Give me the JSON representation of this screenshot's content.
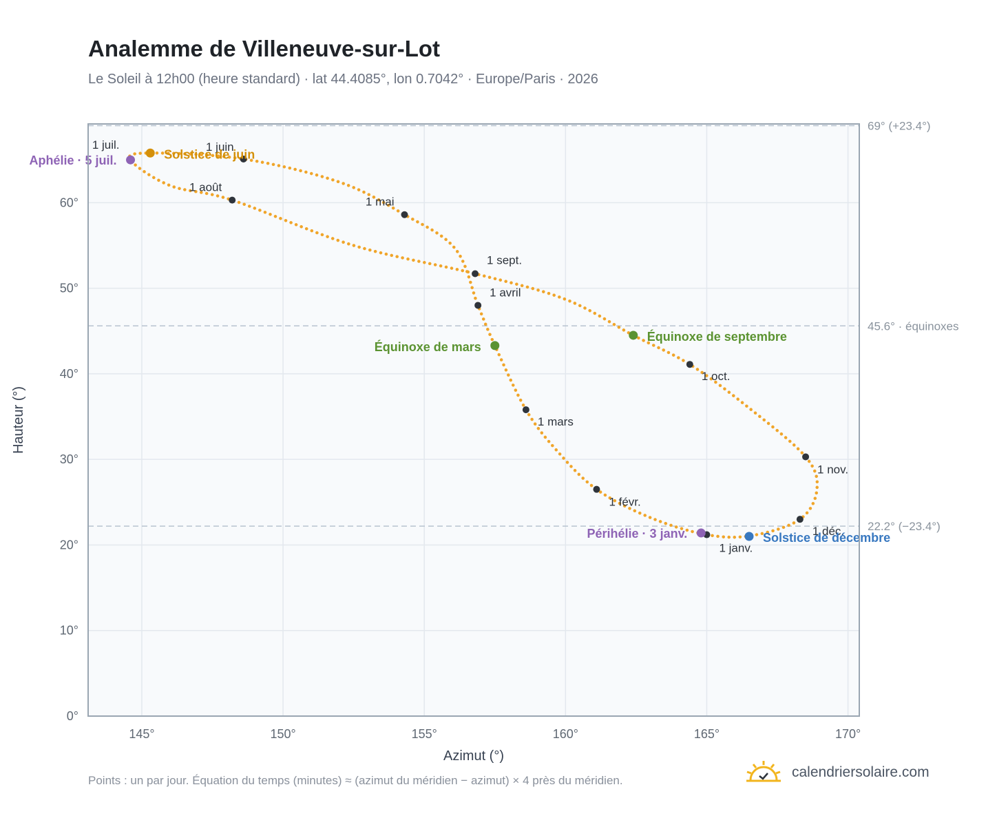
{
  "header": {
    "title": "Analemme de Villeneuve-sur-Lot",
    "subtitle": "Le Soleil à 12h00 (heure standard) · lat 44.4085°, lon 0.7042° · Europe/Paris · 2026"
  },
  "footer": {
    "note": "Points : un par jour. Équation du temps (minutes) ≈ (azimut du méridien − azimut) × 4 près du méridien.",
    "brand": "calendriersolaire.com"
  },
  "chart_data": {
    "type": "scatter",
    "xlabel": "Azimut (°)",
    "ylabel": "Hauteur (°)",
    "xlim": [
      143.1,
      170.4
    ],
    "ylim": [
      0,
      69.2
    ],
    "xticks": [
      145,
      150,
      155,
      160,
      165,
      170
    ],
    "yticks": [
      0,
      10,
      20,
      30,
      40,
      50,
      60
    ],
    "x_tick_suffix": "°",
    "y_tick_suffix": "°",
    "grid": true,
    "series_color": "#f0a52a",
    "path": [
      [
        165.0,
        21.2
      ],
      [
        166.6,
        21.1
      ],
      [
        168.3,
        23.0
      ],
      [
        168.9,
        26.5
      ],
      [
        168.5,
        30.3
      ],
      [
        166.5,
        36.0
      ],
      [
        164.4,
        41.1
      ],
      [
        162.4,
        44.5
      ],
      [
        160.0,
        48.7
      ],
      [
        156.8,
        51.7
      ],
      [
        152.5,
        55.0
      ],
      [
        148.2,
        60.3
      ],
      [
        146.0,
        62.0
      ],
      [
        144.6,
        65.0
      ],
      [
        145.3,
        65.8
      ],
      [
        148.6,
        65.1
      ],
      [
        152.0,
        62.4
      ],
      [
        154.3,
        58.6
      ],
      [
        156.1,
        54.6
      ],
      [
        156.9,
        48.0
      ],
      [
        157.5,
        43.3
      ],
      [
        158.6,
        35.8
      ],
      [
        159.7,
        31.0
      ],
      [
        161.1,
        26.5
      ],
      [
        163.0,
        23.2
      ],
      [
        165.0,
        21.2
      ]
    ],
    "months": [
      {
        "label": "1 janv.",
        "azimuth": 165.0,
        "altitude": 21.2
      },
      {
        "label": "1 févr.",
        "azimuth": 161.1,
        "altitude": 26.5
      },
      {
        "label": "1 mars",
        "azimuth": 158.6,
        "altitude": 35.8
      },
      {
        "label": "1 avril",
        "azimuth": 156.9,
        "altitude": 48.0
      },
      {
        "label": "1 mai",
        "azimuth": 154.3,
        "altitude": 58.6
      },
      {
        "label": "1 juin",
        "azimuth": 148.6,
        "altitude": 65.1
      },
      {
        "label": "1 juil.",
        "azimuth": 144.6,
        "altitude": 65.0
      },
      {
        "label": "1 août",
        "azimuth": 148.2,
        "altitude": 60.3
      },
      {
        "label": "1 sept.",
        "azimuth": 156.8,
        "altitude": 51.7
      },
      {
        "label": "1 oct.",
        "azimuth": 164.4,
        "altitude": 41.1
      },
      {
        "label": "1 nov.",
        "azimuth": 168.5,
        "altitude": 30.3
      },
      {
        "label": "1 déc.",
        "azimuth": 168.3,
        "altitude": 23.0
      }
    ],
    "events": [
      {
        "label": "Solstice de juin",
        "azimuth": 145.3,
        "altitude": 65.8,
        "color": "#d4900a"
      },
      {
        "label": "Aphélie · 5 juil.",
        "azimuth": 144.6,
        "altitude": 65.0,
        "color": "#8e63b5"
      },
      {
        "label": "Équinoxe de mars",
        "azimuth": 157.5,
        "altitude": 43.3,
        "color": "#5b9331"
      },
      {
        "label": "Équinoxe de septembre",
        "azimuth": 162.4,
        "altitude": 44.5,
        "color": "#5b9331"
      },
      {
        "label": "Périhélie · 3 janv.",
        "azimuth": 164.8,
        "altitude": 21.4,
        "color": "#8e63b5"
      },
      {
        "label": "Solstice de décembre",
        "azimuth": 166.5,
        "altitude": 21.0,
        "color": "#3878c0"
      }
    ],
    "reference_lines": [
      {
        "altitude": 69.0,
        "label": "69° (+23.4°)"
      },
      {
        "altitude": 45.6,
        "label": "45.6° · équinoxes"
      },
      {
        "altitude": 22.2,
        "label": "22.2° (−23.4°)"
      }
    ]
  }
}
